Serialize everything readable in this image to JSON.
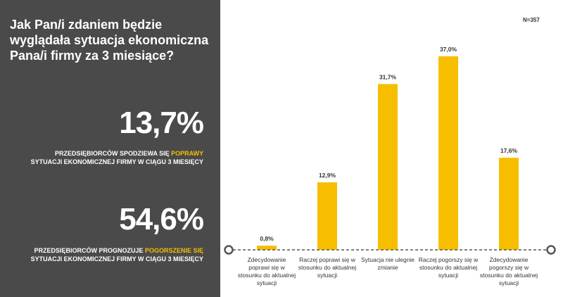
{
  "panel": {
    "question": "Jak Pan/i zdaniem będzie wyglądała sytuacja ekonomiczna Pana/i firmy za 3 miesiące?",
    "stat1": {
      "value": "13,7%",
      "desc_before": "PRZEDSIĘBIORCÓW SPODZIEWA SIĘ ",
      "desc_highlight": "POPRAWY",
      "desc_after": " SYTUACJI EKONOMICZNEJ FIRMY W CIĄGU 3 MIESIĘCY"
    },
    "stat2": {
      "value": "54,6%",
      "desc_before": "PRZEDSIĘBIORCÓW PROGNOZUJE ",
      "desc_highlight": "POGORSZENIE SIĘ",
      "desc_after": " SYTUACJI EKONOMICZNEJ FIRMY W CIĄGU 3 MIESIĘCY"
    }
  },
  "n_label": "N=357",
  "colors": {
    "panel_bg": "#4a4a4a",
    "accent": "#f7be00",
    "axis": "#555555"
  },
  "chart_data": {
    "type": "bar",
    "categories": [
      "Zdecydowanie poprawi się w stosunku do aktualnej sytuacji",
      "Raczej poprawi się w stosunku do aktualnej sytuacji",
      "Sytuacja nie ulegnie zmianie",
      "Raczej pogorszy się w stosunku do aktualnej sytuacji",
      "Zdecydowanie pogorszy się w stosunku do aktualnej sytuacji"
    ],
    "values": [
      0.8,
      12.9,
      31.7,
      37.0,
      17.6
    ],
    "data_labels": [
      "0,8%",
      "12,9%",
      "31,7%",
      "37,0%",
      "17,6%"
    ],
    "ylim": [
      0,
      37.0
    ],
    "grid": false,
    "legend": "none"
  }
}
